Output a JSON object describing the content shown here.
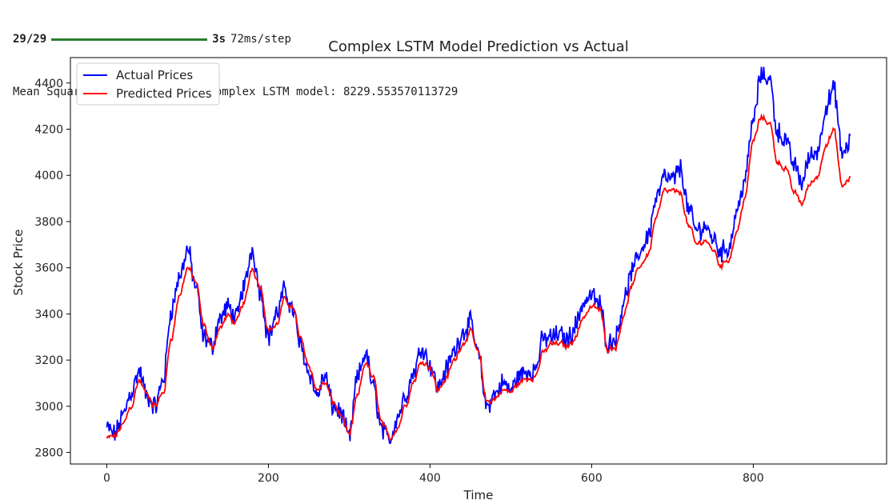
{
  "console": {
    "progress_steps": "29/29",
    "progress_time": "3s",
    "progress_rate": "72ms/step",
    "mse_line": "Mean Squared Error (MSE) for Complex LSTM model: 8229.553570113729",
    "progress_fill": 1.0
  },
  "chart_data": {
    "type": "line",
    "title": "Complex LSTM Model Prediction vs Actual",
    "xlabel": "Time",
    "ylabel": "Stock Price",
    "xlim": [
      -45,
      965
    ],
    "ylim": [
      2750,
      4510
    ],
    "xticks": [
      0,
      200,
      400,
      600,
      800
    ],
    "yticks": [
      2800,
      3000,
      3200,
      3400,
      3600,
      3800,
      4000,
      4200,
      4400
    ],
    "grid": false,
    "legend": "top-left",
    "x": [
      0,
      10,
      20,
      30,
      40,
      50,
      60,
      70,
      80,
      90,
      100,
      110,
      120,
      130,
      140,
      150,
      160,
      170,
      180,
      190,
      200,
      210,
      220,
      230,
      240,
      250,
      260,
      270,
      280,
      290,
      300,
      310,
      320,
      330,
      340,
      350,
      360,
      370,
      380,
      390,
      400,
      410,
      420,
      430,
      440,
      450,
      460,
      470,
      480,
      490,
      500,
      510,
      520,
      530,
      540,
      550,
      560,
      570,
      580,
      590,
      600,
      610,
      620,
      630,
      640,
      650,
      660,
      670,
      680,
      690,
      700,
      710,
      720,
      730,
      740,
      750,
      760,
      770,
      780,
      790,
      800,
      810,
      820,
      830,
      840,
      850,
      860,
      870,
      880,
      890,
      900,
      910,
      920
    ],
    "series": [
      {
        "name": "Actual Prices",
        "color": "#0000ff",
        "values": [
          2905,
          2880,
          2960,
          3060,
          3150,
          3040,
          3000,
          3120,
          3420,
          3560,
          3680,
          3520,
          3300,
          3260,
          3380,
          3430,
          3380,
          3520,
          3680,
          3500,
          3300,
          3400,
          3500,
          3420,
          3260,
          3150,
          3050,
          3130,
          3000,
          2970,
          2860,
          3120,
          3230,
          3080,
          2900,
          2850,
          2960,
          3050,
          3150,
          3260,
          3180,
          3080,
          3160,
          3240,
          3320,
          3360,
          3220,
          3000,
          3050,
          3100,
          3070,
          3130,
          3150,
          3160,
          3290,
          3300,
          3310,
          3290,
          3350,
          3450,
          3480,
          3440,
          3270,
          3300,
          3460,
          3580,
          3670,
          3740,
          3900,
          3990,
          3980,
          4030,
          3850,
          3760,
          3780,
          3730,
          3670,
          3690,
          3850,
          3990,
          4240,
          4440,
          4420,
          4190,
          4150,
          4050,
          3970,
          4080,
          4110,
          4300,
          4370,
          4090,
          4150
        ],
        "value_range": [
          2840,
          4470
        ]
      },
      {
        "name": "Predicted Prices",
        "color": "#ff0000",
        "values": [
          2860,
          2870,
          2920,
          3000,
          3110,
          3050,
          3000,
          3060,
          3300,
          3480,
          3600,
          3540,
          3350,
          3250,
          3340,
          3390,
          3360,
          3450,
          3600,
          3520,
          3330,
          3350,
          3460,
          3430,
          3290,
          3180,
          3070,
          3100,
          3020,
          2960,
          2870,
          3040,
          3190,
          3120,
          2930,
          2860,
          2910,
          3010,
          3110,
          3200,
          3170,
          3070,
          3120,
          3200,
          3270,
          3320,
          3230,
          3020,
          3030,
          3070,
          3060,
          3100,
          3120,
          3130,
          3230,
          3270,
          3270,
          3260,
          3300,
          3390,
          3430,
          3420,
          3250,
          3260,
          3400,
          3520,
          3610,
          3660,
          3820,
          3930,
          3930,
          3920,
          3780,
          3700,
          3720,
          3680,
          3610,
          3640,
          3760,
          3910,
          4150,
          4250,
          4230,
          4060,
          4030,
          3930,
          3880,
          3960,
          4000,
          4140,
          4190,
          3950,
          3990
        ],
        "value_range": [
          2840,
          4260
        ]
      }
    ]
  }
}
